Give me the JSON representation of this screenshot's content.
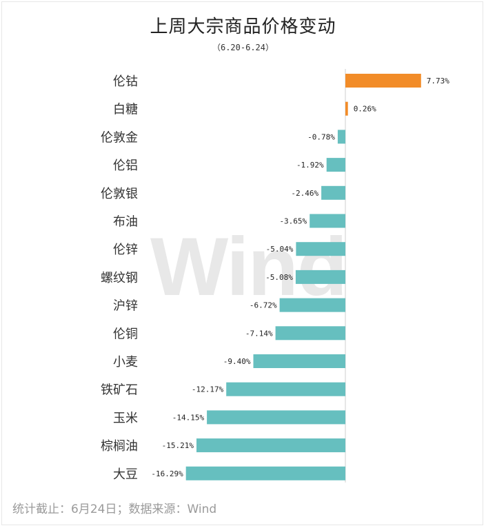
{
  "title": "上周大宗商品价格变动",
  "subtitle": "（6.20-6.24）",
  "watermark": "Wind",
  "footer": "统计截止：6月24日；数据来源：Wind",
  "colors": {
    "positive": "#f28c28",
    "negative": "#66bfbf"
  },
  "chart_data": {
    "type": "bar",
    "orientation": "horizontal",
    "categories": [
      "伦钴",
      "白糖",
      "伦敦金",
      "伦铝",
      "伦敦银",
      "布油",
      "伦锌",
      "螺纹钢",
      "沪锌",
      "伦铜",
      "小麦",
      "铁矿石",
      "玉米",
      "棕榈油",
      "大豆"
    ],
    "values": [
      7.73,
      0.26,
      -0.78,
      -1.92,
      -2.46,
      -3.65,
      -5.04,
      -5.08,
      -6.72,
      -7.14,
      -9.4,
      -12.17,
      -14.15,
      -15.21,
      -16.29
    ],
    "value_labels": [
      "7.73%",
      "0.26%",
      "-0.78%",
      "-1.92%",
      "-2.46%",
      "-3.65%",
      "-5.04%",
      "-5.08%",
      "-6.72%",
      "-7.14%",
      "-9.40%",
      "-12.17%",
      "-14.15%",
      "-15.21%",
      "-16.29%"
    ],
    "unit": "%",
    "grid": false,
    "legend": "none"
  }
}
